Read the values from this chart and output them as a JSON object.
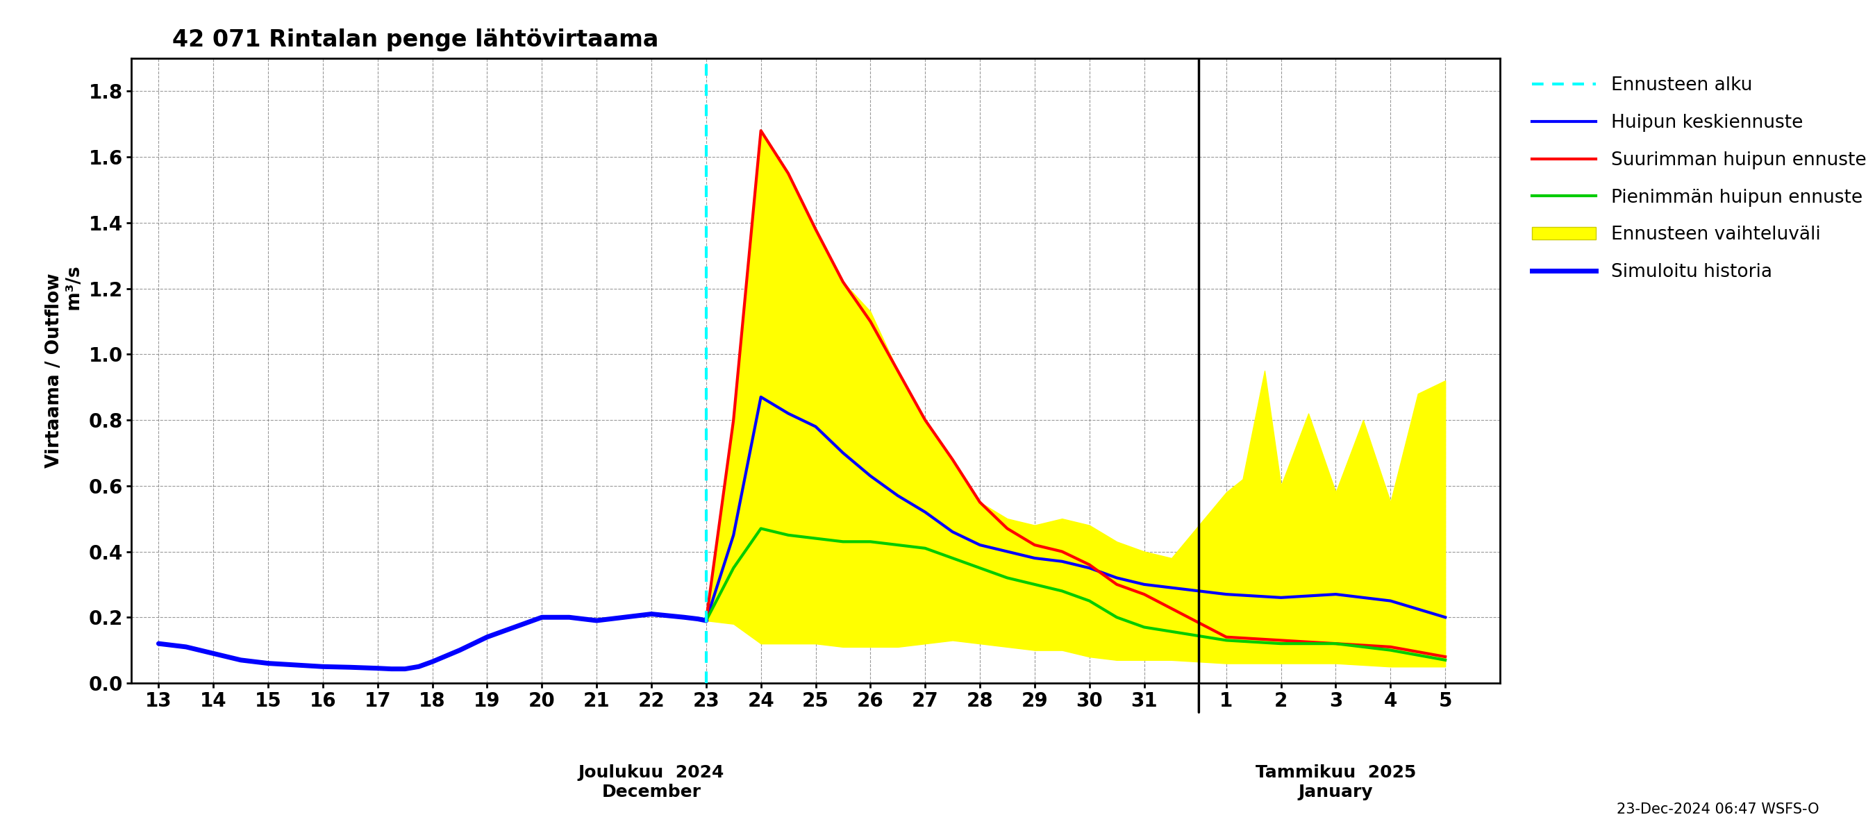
{
  "title": "42 071 Rintalan penge lähtövirtaama",
  "ylabel_top": "Virtaama / Outflow",
  "ylabel_bot": "m³/s",
  "ylim": [
    0.0,
    1.9
  ],
  "yticks": [
    0.0,
    0.2,
    0.4,
    0.6,
    0.8,
    1.0,
    1.2,
    1.4,
    1.6,
    1.8
  ],
  "xlabel_dec": "Joulukuu  2024\nDecember",
  "xlabel_jan": "Tammikuu  2025\nJanuary",
  "footer": "23-Dec-2024 06:47 WSFS-O",
  "forecast_start_x": 10,
  "dec_ticks": [
    0,
    1,
    2,
    3,
    4,
    5,
    6,
    7,
    8,
    9,
    10,
    11,
    12,
    13,
    14,
    15,
    16,
    17,
    18
  ],
  "dec_labels": [
    "13",
    "14",
    "15",
    "16",
    "17",
    "18",
    "19",
    "20",
    "21",
    "22",
    "23",
    "24",
    "25",
    "26",
    "27",
    "28",
    "29",
    "30",
    "31"
  ],
  "jan_ticks": [
    19.5,
    20.5,
    21.5,
    22.5,
    23.5
  ],
  "jan_labels": [
    "1",
    "2",
    "3",
    "4",
    "5"
  ],
  "jan_break_x": 19.0,
  "xlim": [
    -0.5,
    24.5
  ],
  "history_x": [
    0,
    0.5,
    1,
    1.5,
    2,
    2.5,
    3,
    3.5,
    4,
    4.25,
    4.5,
    4.75,
    5,
    5.5,
    6,
    6.5,
    7,
    7.5,
    8,
    8.5,
    9,
    9.3,
    9.6,
    9.85,
    10.0
  ],
  "history_y": [
    0.12,
    0.11,
    0.09,
    0.07,
    0.06,
    0.055,
    0.05,
    0.048,
    0.045,
    0.043,
    0.043,
    0.05,
    0.065,
    0.1,
    0.14,
    0.17,
    0.2,
    0.2,
    0.19,
    0.2,
    0.21,
    0.205,
    0.2,
    0.195,
    0.19
  ],
  "mean_x": [
    10.0,
    10.5,
    11.0,
    11.5,
    12.0,
    12.5,
    13.0,
    13.5,
    14.0,
    14.5,
    15.0,
    15.5,
    16.0,
    16.5,
    17.0,
    17.5,
    18.0,
    19.5,
    20.5,
    21.5,
    22.5,
    23.5
  ],
  "mean_y": [
    0.19,
    0.45,
    0.87,
    0.82,
    0.78,
    0.7,
    0.63,
    0.57,
    0.52,
    0.46,
    0.42,
    0.4,
    0.38,
    0.37,
    0.35,
    0.32,
    0.3,
    0.27,
    0.26,
    0.27,
    0.25,
    0.2
  ],
  "max_x": [
    10.0,
    10.5,
    11.0,
    11.5,
    12.0,
    12.5,
    13.0,
    13.5,
    14.0,
    14.5,
    15.0,
    15.5,
    16.0,
    16.5,
    17.0,
    17.5,
    18.0,
    19.5,
    20.5,
    21.5,
    22.5,
    23.5
  ],
  "max_y": [
    0.19,
    0.8,
    1.68,
    1.55,
    1.38,
    1.22,
    1.1,
    0.95,
    0.8,
    0.68,
    0.55,
    0.47,
    0.42,
    0.4,
    0.36,
    0.3,
    0.27,
    0.14,
    0.13,
    0.12,
    0.11,
    0.08
  ],
  "min_x": [
    10.0,
    10.5,
    11.0,
    11.5,
    12.0,
    12.5,
    13.0,
    13.5,
    14.0,
    14.5,
    15.0,
    15.5,
    16.0,
    16.5,
    17.0,
    17.5,
    18.0,
    19.5,
    20.5,
    21.5,
    22.5,
    23.5
  ],
  "min_y": [
    0.19,
    0.35,
    0.47,
    0.45,
    0.44,
    0.43,
    0.43,
    0.42,
    0.41,
    0.38,
    0.35,
    0.32,
    0.3,
    0.28,
    0.25,
    0.2,
    0.17,
    0.13,
    0.12,
    0.12,
    0.1,
    0.07
  ],
  "band_upper_x": [
    10.0,
    10.5,
    11.0,
    11.5,
    12.0,
    12.5,
    13.0,
    13.5,
    14.0,
    14.5,
    15.0,
    15.5,
    16.0,
    16.5,
    17.0,
    17.5,
    18.0,
    18.5,
    19.5,
    19.8,
    20.2,
    20.5,
    21.0,
    21.5,
    22.0,
    22.5,
    23.0,
    23.5
  ],
  "band_upper_y": [
    0.19,
    0.8,
    1.68,
    1.55,
    1.38,
    1.22,
    1.13,
    0.95,
    0.8,
    0.68,
    0.55,
    0.5,
    0.48,
    0.5,
    0.48,
    0.43,
    0.4,
    0.38,
    0.58,
    0.62,
    0.95,
    0.6,
    0.82,
    0.58,
    0.8,
    0.55,
    0.88,
    0.92
  ],
  "band_lower_x": [
    10.0,
    10.5,
    11.0,
    11.5,
    12.0,
    12.5,
    13.0,
    13.5,
    14.0,
    14.5,
    15.0,
    15.5,
    16.0,
    16.5,
    17.0,
    17.5,
    18.0,
    18.5,
    19.5,
    20.5,
    21.5,
    22.5,
    23.5
  ],
  "band_lower_y": [
    0.19,
    0.18,
    0.12,
    0.12,
    0.12,
    0.11,
    0.11,
    0.11,
    0.12,
    0.13,
    0.12,
    0.11,
    0.1,
    0.1,
    0.08,
    0.07,
    0.07,
    0.07,
    0.06,
    0.06,
    0.06,
    0.05,
    0.05
  ]
}
